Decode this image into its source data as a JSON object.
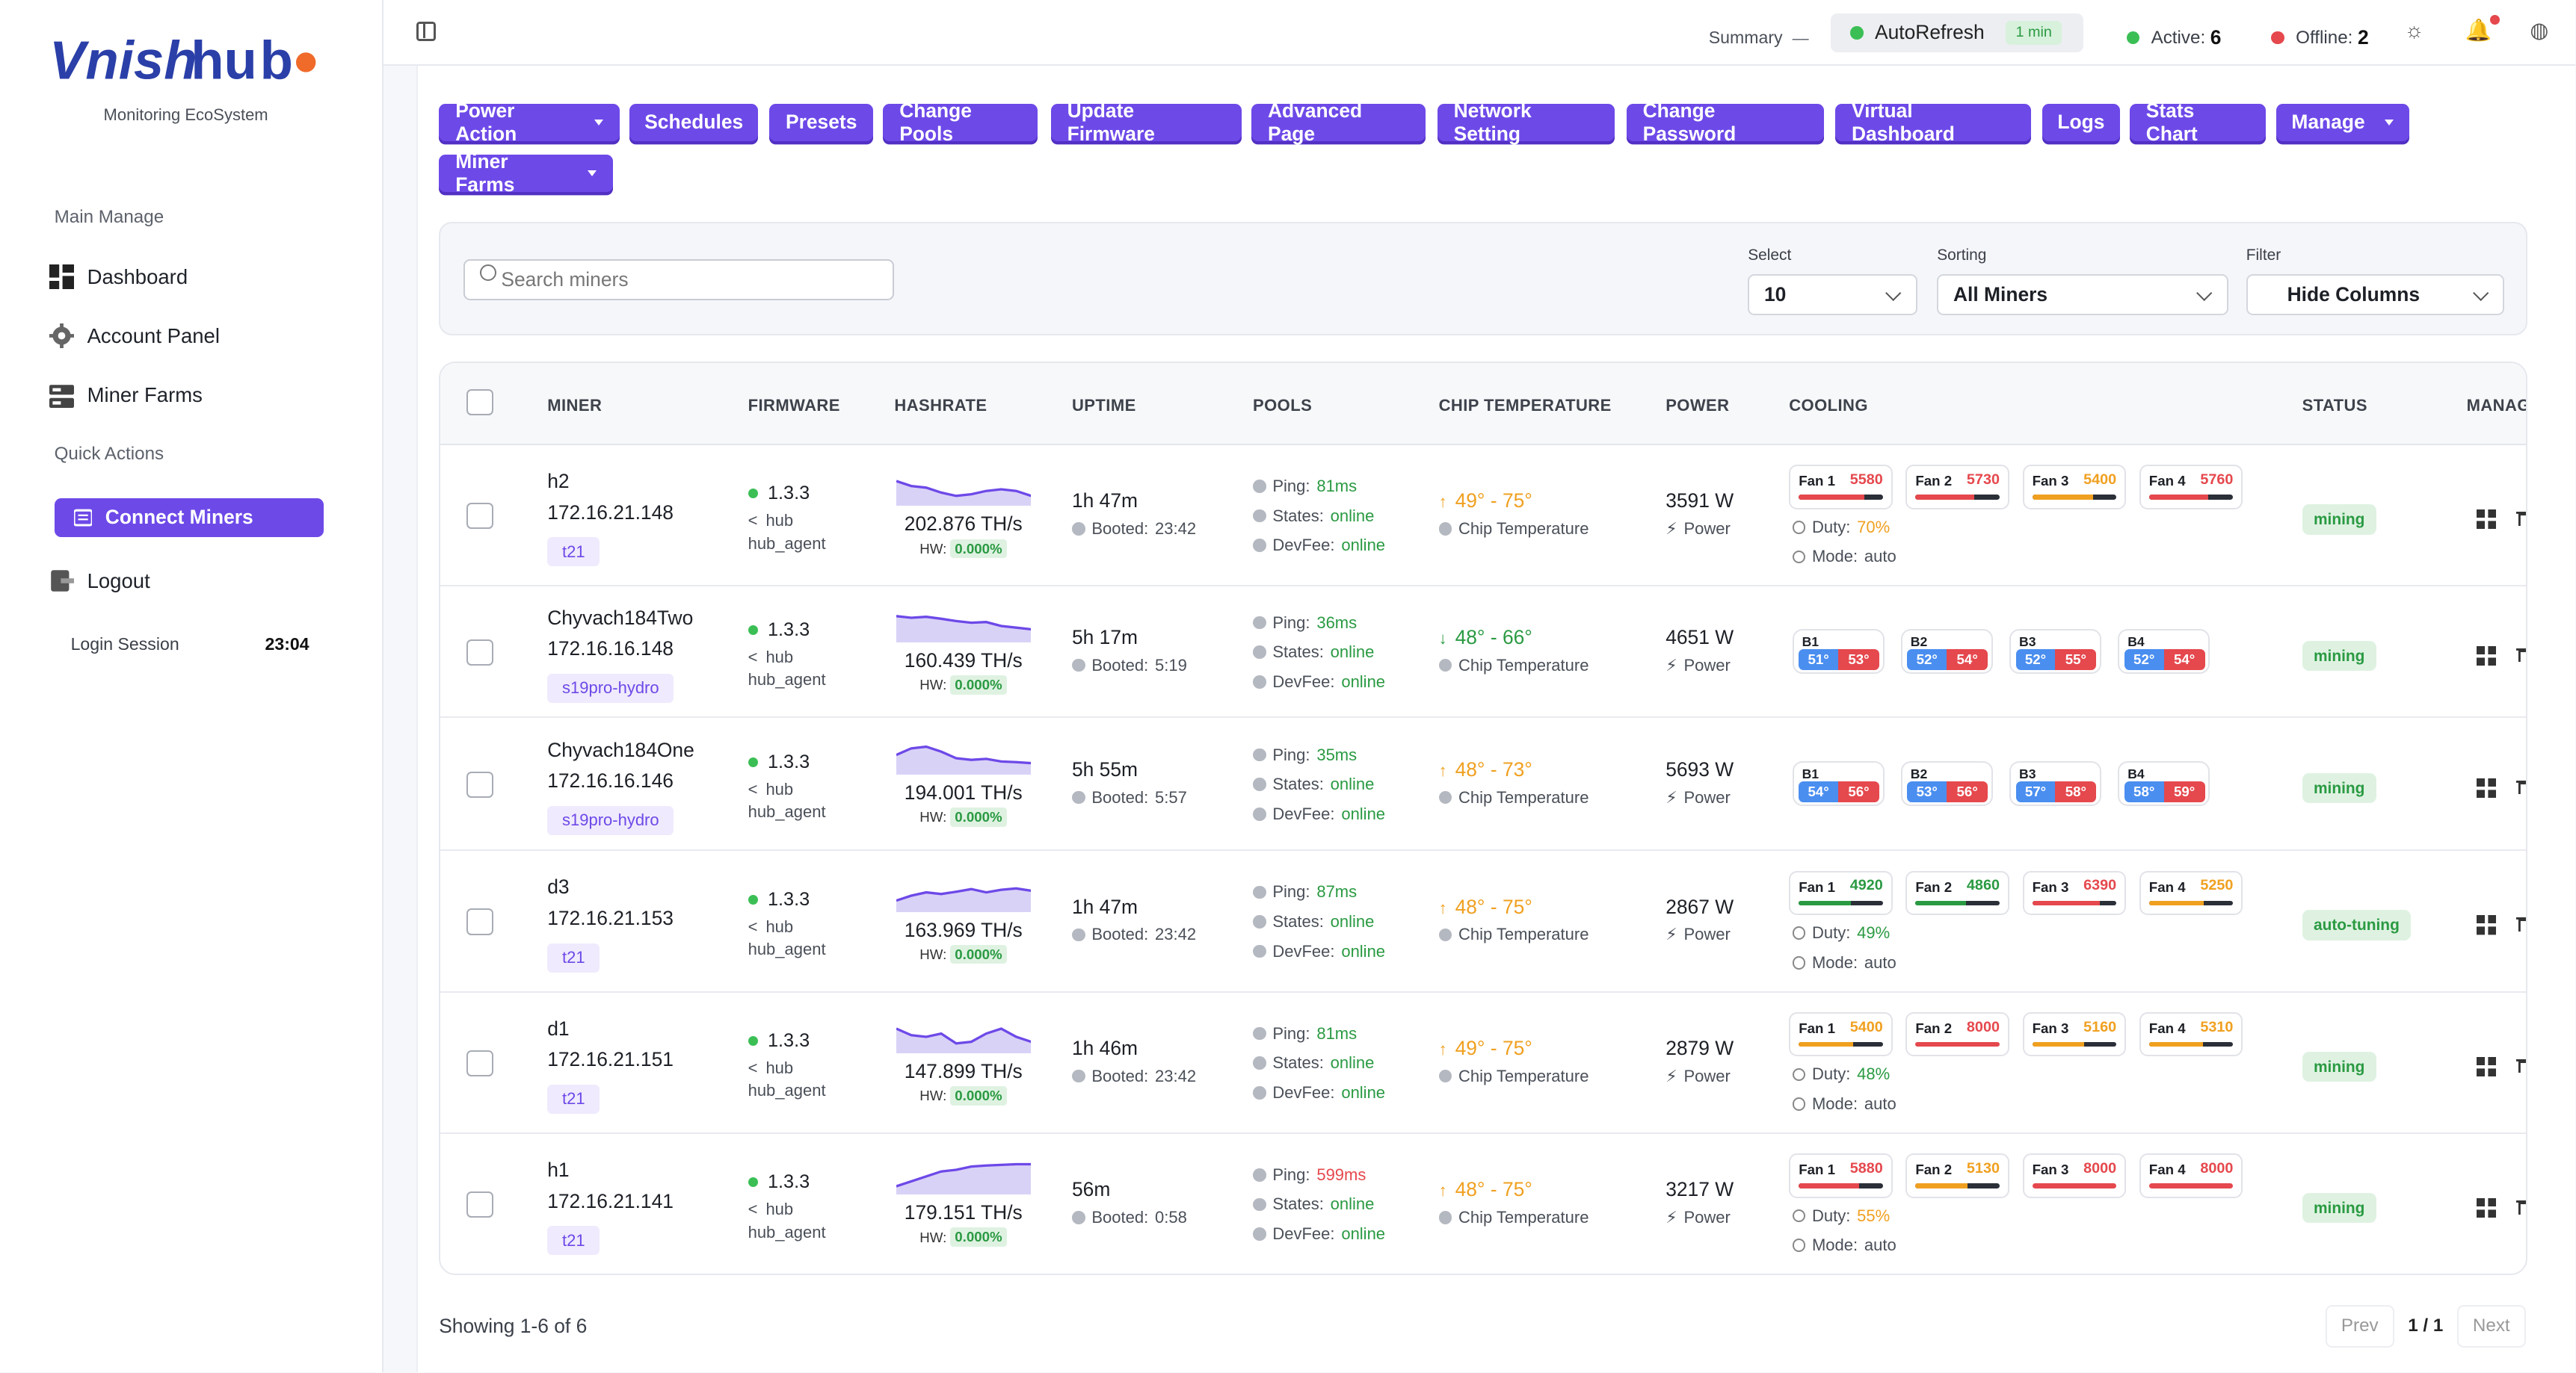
{
  "brand": {
    "name": "Vnishhub",
    "subtitle": "Monitoring EcoSystem",
    "colors": {
      "accent": "#6d49e8",
      "logo_blue": "#2a3fa8",
      "logo_orange": "#f06a2a"
    }
  },
  "sidebar": {
    "main_manage_label": "Main Manage",
    "items": [
      {
        "label": "Dashboard",
        "icon": "dashboard-icon"
      },
      {
        "label": "Account Panel",
        "icon": "gear-icon"
      },
      {
        "label": "Miner Farms",
        "icon": "server-icon"
      }
    ],
    "quick_actions_label": "Quick Actions",
    "connect_label": "Connect Miners",
    "logout_label": "Logout",
    "session_label": "Login Session",
    "session_time": "23:04"
  },
  "topbar": {
    "summary_label": "Summary",
    "autorefresh_label": "AutoRefresh",
    "autorefresh_interval": "1 min",
    "active_label": "Active:",
    "active_count": "6",
    "offline_label": "Offline:",
    "offline_count": "2"
  },
  "actions": [
    {
      "label": "Power Action",
      "dropdown": true
    },
    {
      "label": "Schedules"
    },
    {
      "label": "Presets"
    },
    {
      "label": "Change Pools"
    },
    {
      "label": "Update Firmware"
    },
    {
      "label": "Advanced Page"
    },
    {
      "label": "Network Setting"
    },
    {
      "label": "Change Password"
    },
    {
      "label": "Virtual Dashboard"
    },
    {
      "label": "Logs"
    },
    {
      "label": "Stats Chart"
    },
    {
      "label": "Manage",
      "dropdown": true
    },
    {
      "label": "Miner Farms",
      "dropdown": true
    }
  ],
  "filters": {
    "search_placeholder": "Search miners",
    "select_label": "Select",
    "select_value": "10",
    "sorting_label": "Sorting",
    "sorting_value": "All Miners",
    "filter_label": "Filter",
    "filter_value": "Hide Columns"
  },
  "table": {
    "headers": [
      "MINER",
      "FIRMWARE",
      "HASHRATE",
      "UPTIME",
      "POOLS",
      "CHIP TEMPERATURE",
      "POWER",
      "COOLING",
      "STATUS",
      "MANAGE"
    ],
    "hw_label": "HW:",
    "booted_label": "Booted:",
    "ping_label": "Ping:",
    "states_label": "States:",
    "devfee_label": "DevFee:",
    "chip_temp_label": "Chip Temperature",
    "power_label": "Power",
    "duty_label": "Duty:",
    "mode_label": "Mode:",
    "rows": [
      {
        "name": "h2",
        "ip": "172.16.21.148",
        "model": "t21",
        "fw_version": "1.3.3",
        "fw_hub": "hub",
        "fw_agent": "hub_agent",
        "hashrate": "202.876 TH/s",
        "hw": "0.000%",
        "spark": [
          0.75,
          0.6,
          0.55,
          0.4,
          0.3,
          0.35,
          0.45,
          0.5,
          0.45,
          0.3
        ],
        "uptime": "1h 47m",
        "booted": "23:42",
        "ping": "81ms",
        "ping_ok": true,
        "states": "online",
        "devfee": "online",
        "temp_range": "49° - 75°",
        "temp_trend": "up",
        "power": "3591 W",
        "cooling_type": "fans",
        "fans": [
          {
            "label": "Fan 1",
            "rpm": "5580",
            "color": "#e5484d",
            "level": 0.78
          },
          {
            "label": "Fan 2",
            "rpm": "5730",
            "color": "#e5484d",
            "level": 0.7
          },
          {
            "label": "Fan 3",
            "rpm": "5400",
            "color": "#f0a020",
            "level": 0.72
          },
          {
            "label": "Fan 4",
            "rpm": "5760",
            "color": "#e5484d",
            "level": 0.7
          }
        ],
        "duty": "70%",
        "duty_color": "#f0a020",
        "mode": "auto",
        "status": "mining"
      },
      {
        "name": "Chyvach184Two",
        "ip": "172.16.16.148",
        "model": "s19pro-hydro",
        "fw_version": "1.3.3",
        "fw_hub": "hub",
        "fw_agent": "hub_agent",
        "hashrate": "160.439 TH/s",
        "hw": "0.000%",
        "spark": [
          0.8,
          0.75,
          0.78,
          0.72,
          0.65,
          0.6,
          0.62,
          0.5,
          0.45,
          0.4
        ],
        "uptime": "5h 17m",
        "booted": "5:19",
        "ping": "36ms",
        "ping_ok": true,
        "states": "online",
        "devfee": "online",
        "temp_range": "48° - 66°",
        "temp_trend": "down",
        "power": "4651 W",
        "cooling_type": "boards",
        "boards": [
          {
            "label": "B1",
            "in": "51°",
            "out": "53°"
          },
          {
            "label": "B2",
            "in": "52°",
            "out": "54°"
          },
          {
            "label": "B3",
            "in": "52°",
            "out": "55°"
          },
          {
            "label": "B4",
            "in": "52°",
            "out": "54°"
          }
        ],
        "status": "mining"
      },
      {
        "name": "Chyvach184One",
        "ip": "172.16.16.146",
        "model": "s19pro-hydro",
        "fw_version": "1.3.3",
        "fw_hub": "hub",
        "fw_agent": "hub_agent",
        "hashrate": "194.001 TH/s",
        "hw": "0.000%",
        "spark": [
          0.6,
          0.8,
          0.85,
          0.7,
          0.5,
          0.45,
          0.48,
          0.4,
          0.38,
          0.35
        ],
        "uptime": "5h 55m",
        "booted": "5:57",
        "ping": "35ms",
        "ping_ok": true,
        "states": "online",
        "devfee": "online",
        "temp_range": "48° - 73°",
        "temp_trend": "up",
        "power": "5693 W",
        "cooling_type": "boards",
        "boards": [
          {
            "label": "B1",
            "in": "54°",
            "out": "56°"
          },
          {
            "label": "B2",
            "in": "53°",
            "out": "56°"
          },
          {
            "label": "B3",
            "in": "57°",
            "out": "58°"
          },
          {
            "label": "B4",
            "in": "58°",
            "out": "59°"
          }
        ],
        "status": "mining"
      },
      {
        "name": "d3",
        "ip": "172.16.21.153",
        "model": "t21",
        "fw_version": "1.3.3",
        "fw_hub": "hub",
        "fw_agent": "hub_agent",
        "hashrate": "163.969 TH/s",
        "hw": "0.000%",
        "spark": [
          0.35,
          0.5,
          0.6,
          0.55,
          0.62,
          0.7,
          0.6,
          0.68,
          0.72,
          0.65
        ],
        "uptime": "1h 47m",
        "booted": "23:42",
        "ping": "87ms",
        "ping_ok": true,
        "states": "online",
        "devfee": "online",
        "temp_range": "48° - 75°",
        "temp_trend": "up",
        "power": "2867 W",
        "cooling_type": "fans",
        "fans": [
          {
            "label": "Fan 1",
            "rpm": "4920",
            "color": "#2a9a42",
            "level": 0.62
          },
          {
            "label": "Fan 2",
            "rpm": "4860",
            "color": "#2a9a42",
            "level": 0.6
          },
          {
            "label": "Fan 3",
            "rpm": "6390",
            "color": "#e5484d",
            "level": 0.8
          },
          {
            "label": "Fan 4",
            "rpm": "5250",
            "color": "#f0a020",
            "level": 0.65
          }
        ],
        "duty": "49%",
        "duty_color": "#2a9a42",
        "mode": "auto",
        "status": "auto-tuning"
      },
      {
        "name": "d1",
        "ip": "172.16.21.151",
        "model": "t21",
        "fw_version": "1.3.3",
        "fw_hub": "hub",
        "fw_agent": "hub_agent",
        "hashrate": "147.899 TH/s",
        "hw": "0.000%",
        "spark": [
          0.75,
          0.55,
          0.5,
          0.6,
          0.3,
          0.35,
          0.6,
          0.75,
          0.5,
          0.35
        ],
        "uptime": "1h 46m",
        "booted": "23:42",
        "ping": "81ms",
        "ping_ok": true,
        "states": "online",
        "devfee": "online",
        "temp_range": "49° - 75°",
        "temp_trend": "up",
        "power": "2879 W",
        "cooling_type": "fans",
        "fans": [
          {
            "label": "Fan 1",
            "rpm": "5400",
            "color": "#f0a020",
            "level": 0.65
          },
          {
            "label": "Fan 2",
            "rpm": "8000",
            "color": "#e5484d",
            "level": 1.0
          },
          {
            "label": "Fan 3",
            "rpm": "5160",
            "color": "#f0a020",
            "level": 0.62
          },
          {
            "label": "Fan 4",
            "rpm": "5310",
            "color": "#f0a020",
            "level": 0.64
          }
        ],
        "duty": "48%",
        "duty_color": "#2a9a42",
        "mode": "auto",
        "status": "mining"
      },
      {
        "name": "h1",
        "ip": "172.16.21.141",
        "model": "t21",
        "fw_version": "1.3.3",
        "fw_hub": "hub",
        "fw_agent": "hub_agent",
        "hashrate": "179.151 TH/s",
        "hw": "0.000%",
        "spark": [
          0.25,
          0.4,
          0.55,
          0.7,
          0.75,
          0.85,
          0.88,
          0.9,
          0.92,
          0.92
        ],
        "uptime": "56m",
        "booted": "0:58",
        "ping": "599ms",
        "ping_ok": false,
        "states": "online",
        "devfee": "online",
        "temp_range": "48° - 75°",
        "temp_trend": "up",
        "power": "3217 W",
        "cooling_type": "fans",
        "fans": [
          {
            "label": "Fan 1",
            "rpm": "5880",
            "color": "#e5484d",
            "level": 0.72
          },
          {
            "label": "Fan 2",
            "rpm": "5130",
            "color": "#f0a020",
            "level": 0.62
          },
          {
            "label": "Fan 3",
            "rpm": "8000",
            "color": "#e5484d",
            "level": 1.0
          },
          {
            "label": "Fan 4",
            "rpm": "8000",
            "color": "#e5484d",
            "level": 1.0
          }
        ],
        "duty": "55%",
        "duty_color": "#f0a020",
        "mode": "auto",
        "status": "mining"
      }
    ]
  },
  "footer": {
    "showing": "Showing 1-6 of 6",
    "prev": "Prev",
    "page": "1 / 1",
    "next": "Next"
  }
}
